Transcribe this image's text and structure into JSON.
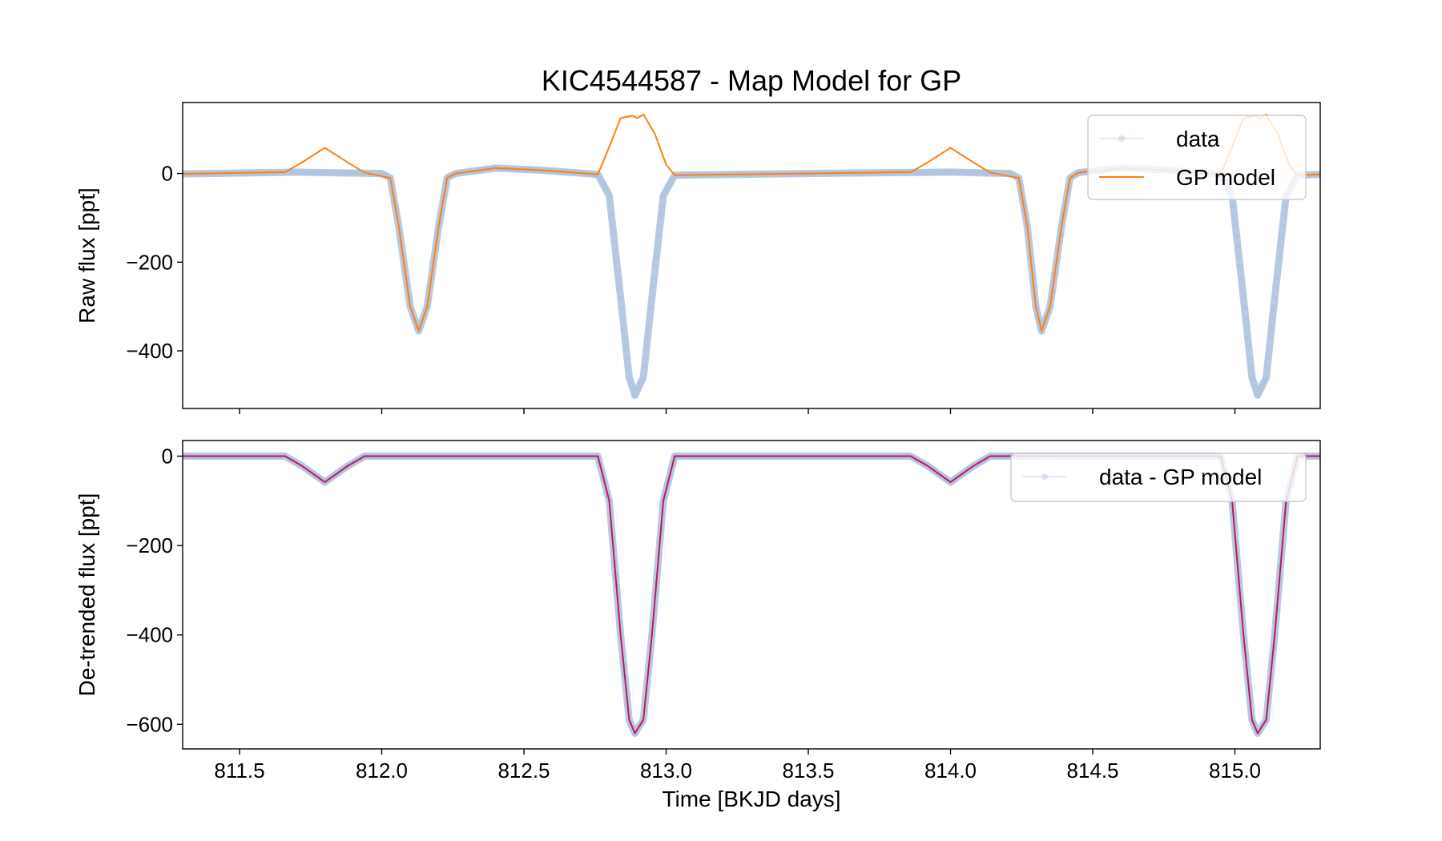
{
  "chart_data": {
    "type": "line",
    "title": "KIC4544587 - Map Model for GP",
    "xlabel": "Time [BKJD days]",
    "xlim": [
      811.3,
      815.3
    ],
    "x_ticks": [
      "811.5",
      "812.0",
      "812.5",
      "813.0",
      "813.5",
      "814.0",
      "814.5",
      "815.0"
    ],
    "x_tick_values": [
      811.5,
      812.0,
      812.5,
      813.0,
      813.5,
      814.0,
      814.5,
      815.0
    ],
    "grid": false,
    "panels": [
      {
        "ylabel": "Raw flux [ppt]",
        "ylim": [
          -530,
          160
        ],
        "y_ticks": [
          "0",
          "−200",
          "−400"
        ],
        "y_tick_values": [
          0,
          -200,
          -400
        ],
        "legend_position": "top-right",
        "series": [
          {
            "name": "data",
            "style": "markers",
            "color": "#b0c4de",
            "points": [
              [
                811.3,
                -1
              ],
              [
                811.7,
                3
              ],
              [
                812.0,
                0
              ],
              [
                812.03,
                -10
              ],
              [
                812.06,
                -120
              ],
              [
                812.1,
                -300
              ],
              [
                812.13,
                -355
              ],
              [
                812.16,
                -300
              ],
              [
                812.2,
                -120
              ],
              [
                812.23,
                -10
              ],
              [
                812.26,
                0
              ],
              [
                812.4,
                12
              ],
              [
                812.55,
                8
              ],
              [
                812.76,
                -2
              ],
              [
                812.8,
                -50
              ],
              [
                812.84,
                -280
              ],
              [
                812.87,
                -460
              ],
              [
                812.89,
                -500
              ],
              [
                812.92,
                -460
              ],
              [
                812.95,
                -280
              ],
              [
                812.99,
                -50
              ],
              [
                813.03,
                -4
              ],
              [
                813.5,
                0
              ],
              [
                814.0,
                3
              ],
              [
                814.21,
                0
              ],
              [
                814.24,
                -10
              ],
              [
                814.27,
                -120
              ],
              [
                814.3,
                -300
              ],
              [
                814.32,
                -355
              ],
              [
                814.35,
                -300
              ],
              [
                814.39,
                -120
              ],
              [
                814.42,
                -10
              ],
              [
                814.45,
                2
              ],
              [
                814.6,
                12
              ],
              [
                814.75,
                8
              ],
              [
                814.95,
                -2
              ],
              [
                814.99,
                -50
              ],
              [
                815.03,
                -280
              ],
              [
                815.06,
                -460
              ],
              [
                815.08,
                -500
              ],
              [
                815.11,
                -460
              ],
              [
                815.14,
                -280
              ],
              [
                815.18,
                -50
              ],
              [
                815.22,
                -4
              ],
              [
                815.3,
                -2
              ]
            ]
          },
          {
            "name": "GP model",
            "style": "line",
            "color": "#ff7f0e",
            "points": [
              [
                811.3,
                -1
              ],
              [
                811.66,
                3
              ],
              [
                811.72,
                25
              ],
              [
                811.8,
                58
              ],
              [
                811.88,
                25
              ],
              [
                811.94,
                2
              ],
              [
                812.03,
                -10
              ],
              [
                812.06,
                -120
              ],
              [
                812.1,
                -300
              ],
              [
                812.13,
                -355
              ],
              [
                812.16,
                -300
              ],
              [
                812.2,
                -120
              ],
              [
                812.23,
                -10
              ],
              [
                812.26,
                0
              ],
              [
                812.4,
                12
              ],
              [
                812.55,
                8
              ],
              [
                812.76,
                -2
              ],
              [
                812.8,
                60
              ],
              [
                812.84,
                125
              ],
              [
                812.88,
                130
              ],
              [
                812.9,
                125
              ],
              [
                812.92,
                133
              ],
              [
                812.96,
                90
              ],
              [
                813.0,
                20
              ],
              [
                813.03,
                -4
              ],
              [
                813.5,
                0
              ],
              [
                813.86,
                3
              ],
              [
                813.92,
                25
              ],
              [
                814.0,
                58
              ],
              [
                814.08,
                25
              ],
              [
                814.14,
                2
              ],
              [
                814.24,
                -10
              ],
              [
                814.27,
                -120
              ],
              [
                814.3,
                -300
              ],
              [
                814.32,
                -355
              ],
              [
                814.35,
                -300
              ],
              [
                814.39,
                -120
              ],
              [
                814.42,
                -10
              ],
              [
                814.45,
                2
              ],
              [
                814.6,
                12
              ],
              [
                814.75,
                8
              ],
              [
                814.95,
                -2
              ],
              [
                814.99,
                60
              ],
              [
                815.03,
                125
              ],
              [
                815.07,
                130
              ],
              [
                815.09,
                125
              ],
              [
                815.11,
                133
              ],
              [
                815.15,
                90
              ],
              [
                815.19,
                20
              ],
              [
                815.22,
                -4
              ],
              [
                815.3,
                -2
              ]
            ]
          }
        ]
      },
      {
        "ylabel": "De-trended flux [ppt]",
        "ylim": [
          -655,
          35
        ],
        "y_ticks": [
          "0",
          "−200",
          "−400",
          "−600"
        ],
        "y_tick_values": [
          0,
          -200,
          -400,
          -600
        ],
        "legend_position": "top-right",
        "series": [
          {
            "name": "data - GP model",
            "style": "markers",
            "color": "#b0c4de",
            "points": [
              [
                811.3,
                0
              ],
              [
                811.66,
                0
              ],
              [
                811.72,
                -22
              ],
              [
                811.8,
                -58
              ],
              [
                811.88,
                -22
              ],
              [
                811.94,
                0
              ],
              [
                812.76,
                0
              ],
              [
                812.8,
                -100
              ],
              [
                812.84,
                -400
              ],
              [
                812.87,
                -590
              ],
              [
                812.89,
                -620
              ],
              [
                812.92,
                -590
              ],
              [
                812.95,
                -400
              ],
              [
                812.99,
                -100
              ],
              [
                813.03,
                0
              ],
              [
                813.86,
                0
              ],
              [
                813.92,
                -22
              ],
              [
                814.0,
                -58
              ],
              [
                814.08,
                -22
              ],
              [
                814.14,
                0
              ],
              [
                814.95,
                0
              ],
              [
                814.99,
                -100
              ],
              [
                815.03,
                -400
              ],
              [
                815.06,
                -590
              ],
              [
                815.08,
                -620
              ],
              [
                815.11,
                -590
              ],
              [
                815.14,
                -400
              ],
              [
                815.18,
                -100
              ],
              [
                815.22,
                0
              ],
              [
                815.3,
                0
              ]
            ]
          },
          {
            "style": "line",
            "color": "#c2185b",
            "points": [
              [
                811.3,
                0
              ],
              [
                811.66,
                0
              ],
              [
                811.72,
                -22
              ],
              [
                811.8,
                -58
              ],
              [
                811.88,
                -22
              ],
              [
                811.94,
                0
              ],
              [
                812.76,
                0
              ],
              [
                812.8,
                -100
              ],
              [
                812.84,
                -400
              ],
              [
                812.87,
                -590
              ],
              [
                812.89,
                -620
              ],
              [
                812.92,
                -590
              ],
              [
                812.95,
                -400
              ],
              [
                812.99,
                -100
              ],
              [
                813.03,
                0
              ],
              [
                813.86,
                0
              ],
              [
                813.92,
                -22
              ],
              [
                814.0,
                -58
              ],
              [
                814.08,
                -22
              ],
              [
                814.14,
                0
              ],
              [
                814.95,
                0
              ],
              [
                814.99,
                -100
              ],
              [
                815.03,
                -400
              ],
              [
                815.06,
                -590
              ],
              [
                815.08,
                -620
              ],
              [
                815.11,
                -590
              ],
              [
                815.14,
                -400
              ],
              [
                815.18,
                -100
              ],
              [
                815.22,
                0
              ],
              [
                815.3,
                0
              ]
            ]
          }
        ]
      }
    ]
  }
}
